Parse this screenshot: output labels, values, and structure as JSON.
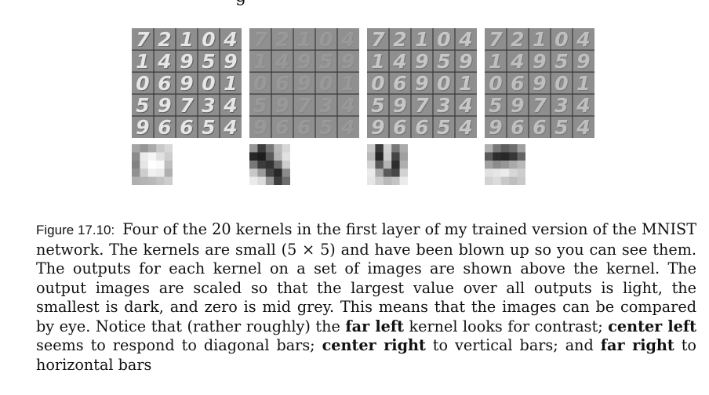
{
  "figure": {
    "top_fragment": "g",
    "panels": [
      {
        "name": "far-left",
        "digits": [
          "7",
          "2",
          "1",
          "0",
          "4",
          "1",
          "4",
          "9",
          "5",
          "9",
          "0",
          "6",
          "9",
          "0",
          "1",
          "5",
          "9",
          "7",
          "3",
          "4",
          "9",
          "6",
          "6",
          "5",
          "4"
        ],
        "kernel": [
          [
            165,
            150,
            170,
            200,
            215
          ],
          [
            140,
            235,
            245,
            225,
            205
          ],
          [
            130,
            230,
            255,
            250,
            190
          ],
          [
            145,
            205,
            240,
            235,
            175
          ],
          [
            175,
            180,
            185,
            195,
            205
          ]
        ]
      },
      {
        "name": "center-left",
        "digits": [
          "7",
          "2",
          "1",
          "0",
          "4",
          "1",
          "4",
          "9",
          "5",
          "9",
          "0",
          "6",
          "9",
          "0",
          "1",
          "5",
          "9",
          "7",
          "3",
          "4",
          "9",
          "6",
          "6",
          "5",
          "4"
        ],
        "kernel": [
          [
            150,
            60,
            120,
            185,
            215
          ],
          [
            40,
            30,
            90,
            180,
            225
          ],
          [
            120,
            60,
            50,
            110,
            205
          ],
          [
            200,
            155,
            70,
            40,
            140
          ],
          [
            235,
            220,
            150,
            60,
            110
          ]
        ]
      },
      {
        "name": "center-right",
        "digits": [
          "7",
          "2",
          "1",
          "0",
          "4",
          "1",
          "4",
          "9",
          "5",
          "9",
          "0",
          "6",
          "9",
          "0",
          "1",
          "5",
          "9",
          "7",
          "3",
          "4",
          "9",
          "6",
          "6",
          "5",
          "4"
        ],
        "kernel": [
          [
            200,
            60,
            210,
            120,
            170
          ],
          [
            185,
            40,
            205,
            70,
            160
          ],
          [
            210,
            90,
            180,
            45,
            175
          ],
          [
            235,
            170,
            90,
            70,
            210
          ],
          [
            230,
            205,
            185,
            195,
            235
          ]
        ]
      },
      {
        "name": "far-right",
        "digits": [
          "7",
          "2",
          "1",
          "0",
          "4",
          "1",
          "4",
          "9",
          "5",
          "9",
          "0",
          "6",
          "9",
          "0",
          "1",
          "5",
          "9",
          "7",
          "3",
          "4",
          "9",
          "6",
          "6",
          "5",
          "4"
        ],
        "kernel": [
          [
            175,
            120,
            95,
            110,
            160
          ],
          [
            90,
            45,
            40,
            55,
            100
          ],
          [
            160,
            140,
            150,
            170,
            185
          ],
          [
            225,
            230,
            235,
            215,
            205
          ],
          [
            210,
            220,
            200,
            190,
            200
          ]
        ]
      }
    ]
  },
  "caption": {
    "label": "Figure 17.10:",
    "t1": "Four of the 20 kernels in the first layer of my trained version of the MNIST network. The kernels are small (5 × 5) and have been blown up so you can see them. The outputs for each kernel on a set of images are shown above the kernel. The output images are scaled so that the largest value over all outputs is light, the smallest is dark, and zero is mid grey. This means that the images can be compared by eye. Notice that (rather roughly) the ",
    "b1": "far left",
    "t2": " kernel looks for contrast; ",
    "b2": "center left",
    "t3": " seems to respond to diagonal bars; ",
    "b3": "center right",
    "t4": " to vertical bars; and ",
    "b4": "far right",
    "t5": " to horizontal bars"
  }
}
